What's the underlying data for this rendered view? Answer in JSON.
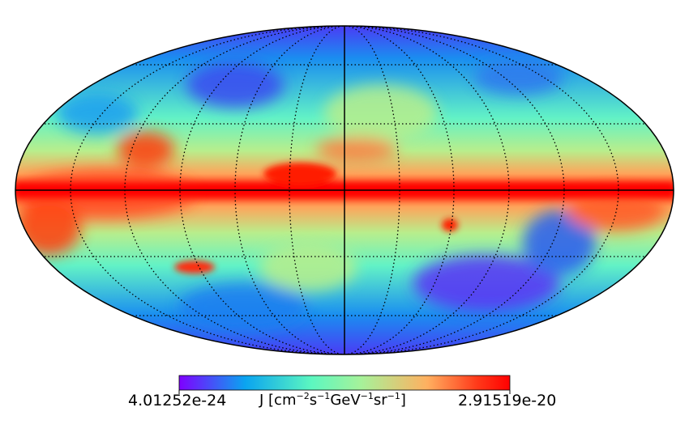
{
  "map": {
    "projection": "mollweide",
    "graticule": "dotted",
    "colormap": "rainbow",
    "colormap_stops": [
      "#7f00ff",
      "#0aa4f0",
      "#5cf7c0",
      "#a6f29a",
      "#ffb060",
      "#ff3a1a",
      "#ff0000"
    ]
  },
  "colorbar": {
    "min_label": "4.01252e-24",
    "max_label": "2.91519e-20",
    "unit_prefix": "J [cm",
    "exp1": "−2",
    "unit_s": "s",
    "exp2": "−1",
    "unit_gev": "GeV",
    "exp3": "−1",
    "unit_sr": "sr",
    "exp4": "−1",
    "unit_suffix": "]"
  }
}
